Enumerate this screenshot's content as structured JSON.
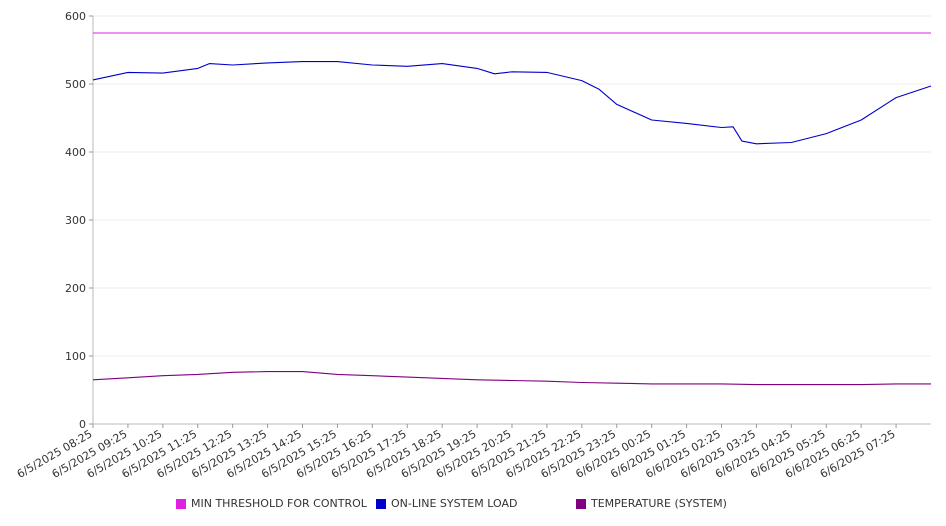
{
  "chart_data": {
    "type": "line",
    "ylim": [
      0,
      600
    ],
    "yticks": [
      "0",
      "100",
      "200",
      "300",
      "400",
      "500",
      "600"
    ],
    "xlim": [
      "6/5/2025 08:25",
      "6/6/2025 08:25"
    ],
    "xticks": [
      "6/5/2025 08:25",
      "6/5/2025 09:25",
      "6/5/2025 10:25",
      "6/5/2025 11:25",
      "6/5/2025 12:25",
      "6/5/2025 13:25",
      "6/5/2025 14:25",
      "6/5/2025 15:25",
      "6/5/2025 16:25",
      "6/5/2025 17:25",
      "6/5/2025 18:25",
      "6/5/2025 19:25",
      "6/5/2025 20:25",
      "6/5/2025 21:25",
      "6/5/2025 22:25",
      "6/5/2025 23:25",
      "6/6/2025 00:25",
      "6/6/2025 01:25",
      "6/6/2025 02:25",
      "6/6/2025 03:25",
      "6/6/2025 04:25",
      "6/6/2025 05:25",
      "6/6/2025 06:25",
      "6/6/2025 07:25"
    ],
    "grid": true,
    "legend_position": "bottom",
    "series": [
      {
        "name": "MIN THRESHOLD FOR CONTROL",
        "color": "#e020e0",
        "x": [
          "6/5/2025 08:25",
          "6/6/2025 08:25"
        ],
        "y": [
          575,
          575
        ]
      },
      {
        "name": "ON-LINE SYSTEM LOAD",
        "color": "#0000cc",
        "x": [
          "6/5/2025 08:25",
          "6/5/2025 09:25",
          "6/5/2025 10:25",
          "6/5/2025 11:25",
          "6/5/2025 11:45",
          "6/5/2025 12:25",
          "6/5/2025 13:25",
          "6/5/2025 14:25",
          "6/5/2025 15:25",
          "6/5/2025 16:25",
          "6/5/2025 17:25",
          "6/5/2025 18:25",
          "6/5/2025 19:25",
          "6/5/2025 19:55",
          "6/5/2025 20:25",
          "6/5/2025 21:25",
          "6/5/2025 22:25",
          "6/5/2025 22:55",
          "6/5/2025 23:25",
          "6/6/2025 00:25",
          "6/6/2025 01:25",
          "6/6/2025 02:25",
          "6/6/2025 02:45",
          "6/6/2025 03:00",
          "6/6/2025 03:25",
          "6/6/2025 04:25",
          "6/6/2025 05:25",
          "6/6/2025 06:25",
          "6/6/2025 07:25",
          "6/6/2025 08:25"
        ],
        "y": [
          506,
          517,
          516,
          523,
          530,
          528,
          531,
          533,
          533,
          528,
          526,
          530,
          523,
          515,
          518,
          517,
          505,
          492,
          470,
          447,
          442,
          436,
          437,
          416,
          412,
          414,
          427,
          447,
          480,
          497
        ]
      },
      {
        "name": "TEMPERATURE (SYSTEM)",
        "color": "#800080",
        "x": [
          "6/5/2025 08:25",
          "6/5/2025 09:25",
          "6/5/2025 10:25",
          "6/5/2025 11:25",
          "6/5/2025 12:25",
          "6/5/2025 13:25",
          "6/5/2025 14:25",
          "6/5/2025 15:25",
          "6/5/2025 16:25",
          "6/5/2025 17:25",
          "6/5/2025 18:25",
          "6/5/2025 19:25",
          "6/5/2025 20:25",
          "6/5/2025 21:25",
          "6/5/2025 22:25",
          "6/5/2025 23:25",
          "6/6/2025 00:25",
          "6/6/2025 01:25",
          "6/6/2025 02:25",
          "6/6/2025 03:25",
          "6/6/2025 04:25",
          "6/6/2025 05:25",
          "6/6/2025 06:25",
          "6/6/2025 07:25",
          "6/6/2025 08:25"
        ],
        "y": [
          65,
          68,
          71,
          73,
          76,
          77,
          77,
          73,
          71,
          69,
          67,
          65,
          64,
          63,
          61,
          60,
          59,
          59,
          59,
          58,
          58,
          58,
          58,
          59,
          59
        ]
      }
    ]
  }
}
